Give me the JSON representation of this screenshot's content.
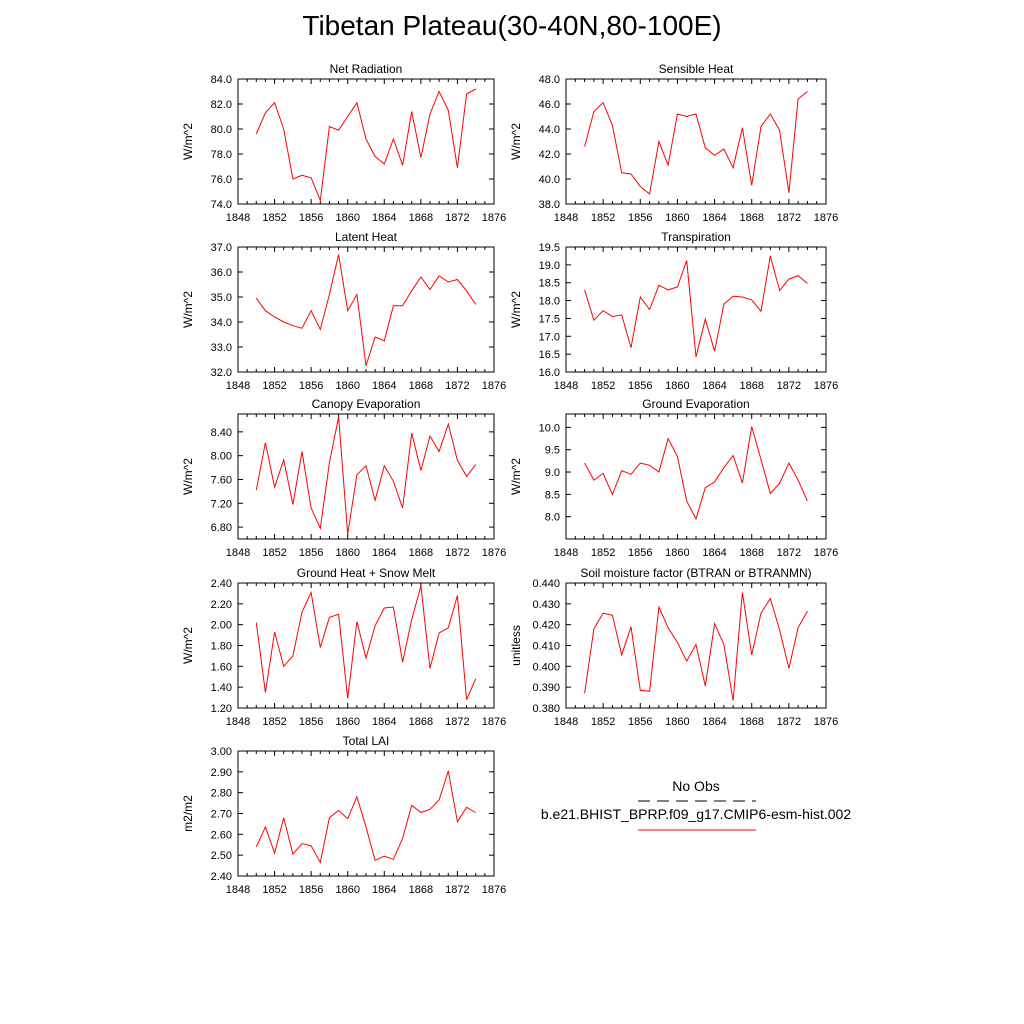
{
  "title": "Tibetan Plateau(30-40N,80-100E)",
  "colors": {
    "model_line": "#ff0000",
    "obs_line": "#000000",
    "axis": "#000000"
  },
  "legend": {
    "obs_label": "No Obs",
    "case_label": "b.e21.BHIST_BPRP.f09_g17.CMIP6-esm-hist.002"
  },
  "chart_data": [
    {
      "type": "line",
      "title": "Net Radiation",
      "ylabel": "W/m^2",
      "xlim": [
        1848,
        1876
      ],
      "ylim": [
        74.0,
        84.0
      ],
      "xticks": [
        "1848",
        "1852",
        "1856",
        "1860",
        "1864",
        "1868",
        "1872",
        "1876"
      ],
      "yticks": [
        "74.0",
        "76.0",
        "78.0",
        "80.0",
        "82.0",
        "84.0"
      ],
      "ytick_values": [
        74,
        76,
        78,
        80,
        82,
        84
      ],
      "grid": false,
      "series": [
        {
          "x": [
            1850,
            1851,
            1852,
            1853,
            1854,
            1855,
            1856,
            1857,
            1858,
            1859,
            1860,
            1861,
            1862,
            1863,
            1864,
            1865,
            1866,
            1867,
            1868,
            1869,
            1870,
            1871,
            1872,
            1873,
            1874
          ],
          "values": [
            79.6,
            81.3,
            82.1,
            80.0,
            76.0,
            76.3,
            76.1,
            74.3,
            80.2,
            79.9,
            81.0,
            82.1,
            79.2,
            77.8,
            77.2,
            79.2,
            77.1,
            81.4,
            77.7,
            81.2,
            83.0,
            81.5,
            76.9,
            82.8,
            83.2
          ]
        }
      ]
    },
    {
      "type": "line",
      "title": "Sensible Heat",
      "ylabel": "W/m^2",
      "xlim": [
        1848,
        1876
      ],
      "ylim": [
        38.0,
        48.0
      ],
      "xticks": [
        "1848",
        "1852",
        "1856",
        "1860",
        "1864",
        "1868",
        "1872",
        "1876"
      ],
      "yticks": [
        "38.0",
        "40.0",
        "42.0",
        "44.0",
        "46.0",
        "48.0"
      ],
      "ytick_values": [
        38,
        40,
        42,
        44,
        46,
        48
      ],
      "grid": false,
      "series": [
        {
          "x": [
            1850,
            1851,
            1852,
            1853,
            1854,
            1855,
            1856,
            1857,
            1858,
            1859,
            1860,
            1861,
            1862,
            1863,
            1864,
            1865,
            1866,
            1867,
            1868,
            1869,
            1870,
            1871,
            1872,
            1873,
            1874
          ],
          "values": [
            42.6,
            45.4,
            46.1,
            44.3,
            40.5,
            40.4,
            39.4,
            38.8,
            43.0,
            41.1,
            45.2,
            45.0,
            45.2,
            42.5,
            41.9,
            42.4,
            40.9,
            44.1,
            39.5,
            44.2,
            45.2,
            43.9,
            38.9,
            46.4,
            47.0
          ]
        }
      ]
    },
    {
      "type": "line",
      "title": "Latent Heat",
      "ylabel": "W/m^2",
      "xlim": [
        1848,
        1876
      ],
      "ylim": [
        32.0,
        37.0
      ],
      "xticks": [
        "1848",
        "1852",
        "1856",
        "1860",
        "1864",
        "1868",
        "1872",
        "1876"
      ],
      "yticks": [
        "32.0",
        "33.0",
        "34.0",
        "35.0",
        "36.0",
        "37.0"
      ],
      "ytick_values": [
        32,
        33,
        34,
        35,
        36,
        37
      ],
      "grid": false,
      "series": [
        {
          "x": [
            1850,
            1851,
            1852,
            1853,
            1854,
            1855,
            1856,
            1857,
            1858,
            1859,
            1860,
            1861,
            1862,
            1863,
            1864,
            1865,
            1866,
            1867,
            1868,
            1869,
            1870,
            1871,
            1872,
            1873,
            1874
          ],
          "values": [
            34.95,
            34.45,
            34.2,
            34.0,
            33.85,
            33.75,
            34.45,
            33.7,
            35.1,
            36.7,
            34.45,
            35.1,
            32.25,
            33.4,
            33.25,
            34.65,
            34.65,
            35.25,
            35.8,
            35.3,
            35.85,
            35.6,
            35.7,
            35.25,
            34.7
          ]
        }
      ]
    },
    {
      "type": "line",
      "title": "Transpiration",
      "ylabel": "W/m^2",
      "xlim": [
        1848,
        1876
      ],
      "ylim": [
        16.0,
        19.5
      ],
      "xticks": [
        "1848",
        "1852",
        "1856",
        "1860",
        "1864",
        "1868",
        "1872",
        "1876"
      ],
      "yticks": [
        "16.0",
        "16.5",
        "17.0",
        "17.5",
        "18.0",
        "18.5",
        "19.0",
        "19.5"
      ],
      "ytick_values": [
        16.0,
        16.5,
        17.0,
        17.5,
        18.0,
        18.5,
        19.0,
        19.5
      ],
      "grid": false,
      "series": [
        {
          "x": [
            1850,
            1851,
            1852,
            1853,
            1854,
            1855,
            1856,
            1857,
            1858,
            1859,
            1860,
            1861,
            1862,
            1863,
            1864,
            1865,
            1866,
            1867,
            1868,
            1869,
            1870,
            1871,
            1872,
            1873,
            1874
          ],
          "values": [
            18.3,
            17.45,
            17.72,
            17.55,
            17.6,
            16.68,
            18.1,
            17.75,
            18.43,
            18.3,
            18.38,
            19.12,
            16.42,
            17.48,
            16.58,
            17.9,
            18.12,
            18.1,
            18.02,
            17.7,
            19.25,
            18.28,
            18.6,
            18.7,
            18.48
          ]
        }
      ]
    },
    {
      "type": "line",
      "title": "Canopy Evaporation",
      "ylabel": "W/m^2",
      "xlim": [
        1848,
        1876
      ],
      "ylim": [
        6.6,
        8.7
      ],
      "xticks": [
        "1848",
        "1852",
        "1856",
        "1860",
        "1864",
        "1868",
        "1872",
        "1876"
      ],
      "yticks": [
        "6.80",
        "7.20",
        "7.60",
        "8.00",
        "8.40"
      ],
      "ytick_values": [
        6.8,
        7.2,
        7.6,
        8.0,
        8.4
      ],
      "grid": false,
      "series": [
        {
          "x": [
            1850,
            1851,
            1852,
            1853,
            1854,
            1855,
            1856,
            1857,
            1858,
            1859,
            1860,
            1861,
            1862,
            1863,
            1864,
            1865,
            1866,
            1867,
            1868,
            1869,
            1870,
            1871,
            1872,
            1873,
            1874
          ],
          "values": [
            7.42,
            8.22,
            7.47,
            7.93,
            7.18,
            8.07,
            7.12,
            6.78,
            7.88,
            8.65,
            6.68,
            7.68,
            7.83,
            7.25,
            7.83,
            7.57,
            7.12,
            8.38,
            7.75,
            8.33,
            8.07,
            8.53,
            7.92,
            7.65,
            7.85
          ]
        }
      ]
    },
    {
      "type": "line",
      "title": "Ground Evaporation",
      "ylabel": "W/m^2",
      "xlim": [
        1848,
        1876
      ],
      "ylim": [
        7.5,
        10.3
      ],
      "xticks": [
        "1848",
        "1852",
        "1856",
        "1860",
        "1864",
        "1868",
        "1872",
        "1876"
      ],
      "yticks": [
        "8.0",
        "8.5",
        "9.0",
        "9.5",
        "10.0"
      ],
      "ytick_values": [
        8.0,
        8.5,
        9.0,
        9.5,
        10.0
      ],
      "grid": false,
      "series": [
        {
          "x": [
            1850,
            1851,
            1852,
            1853,
            1854,
            1855,
            1856,
            1857,
            1858,
            1859,
            1860,
            1861,
            1862,
            1863,
            1864,
            1865,
            1866,
            1867,
            1868,
            1869,
            1870,
            1871,
            1872,
            1873,
            1874
          ],
          "values": [
            9.2,
            8.82,
            8.97,
            8.5,
            9.03,
            8.95,
            9.2,
            9.15,
            9.0,
            9.75,
            9.35,
            8.35,
            7.95,
            8.65,
            8.78,
            9.1,
            9.37,
            8.75,
            10.02,
            9.28,
            8.52,
            8.75,
            9.2,
            8.82,
            8.35
          ]
        }
      ]
    },
    {
      "type": "line",
      "title": "Ground Heat + Snow Melt",
      "ylabel": "W/m^2",
      "xlim": [
        1848,
        1876
      ],
      "ylim": [
        1.2,
        2.4
      ],
      "xticks": [
        "1848",
        "1852",
        "1856",
        "1860",
        "1864",
        "1868",
        "1872",
        "1876"
      ],
      "yticks": [
        "1.20",
        "1.40",
        "1.60",
        "1.80",
        "2.00",
        "2.20",
        "2.40"
      ],
      "ytick_values": [
        1.2,
        1.4,
        1.6,
        1.8,
        2.0,
        2.2,
        2.4
      ],
      "grid": false,
      "series": [
        {
          "x": [
            1850,
            1851,
            1852,
            1853,
            1854,
            1855,
            1856,
            1857,
            1858,
            1859,
            1860,
            1861,
            1862,
            1863,
            1864,
            1865,
            1866,
            1867,
            1868,
            1869,
            1870,
            1871,
            1872,
            1873,
            1874
          ],
          "values": [
            2.02,
            1.35,
            1.93,
            1.6,
            1.7,
            2.12,
            2.31,
            1.78,
            2.07,
            2.1,
            1.29,
            2.03,
            1.68,
            1.99,
            2.16,
            2.17,
            1.64,
            2.05,
            2.37,
            1.58,
            1.92,
            1.97,
            2.28,
            1.28,
            1.48
          ]
        }
      ]
    },
    {
      "type": "line",
      "title": "Soil moisture factor (BTRAN or BTRANMN)",
      "ylabel": "unitless",
      "xlim": [
        1848,
        1876
      ],
      "ylim": [
        0.38,
        0.44
      ],
      "xticks": [
        "1848",
        "1852",
        "1856",
        "1860",
        "1864",
        "1868",
        "1872",
        "1876"
      ],
      "yticks": [
        "0.380",
        "0.390",
        "0.400",
        "0.410",
        "0.420",
        "0.430",
        "0.440"
      ],
      "ytick_values": [
        0.38,
        0.39,
        0.4,
        0.41,
        0.42,
        0.43,
        0.44
      ],
      "grid": false,
      "series": [
        {
          "x": [
            1850,
            1851,
            1852,
            1853,
            1854,
            1855,
            1856,
            1857,
            1858,
            1859,
            1860,
            1861,
            1862,
            1863,
            1864,
            1865,
            1866,
            1867,
            1868,
            1869,
            1870,
            1871,
            1872,
            1873,
            1874
          ],
          "values": [
            0.387,
            0.418,
            0.4255,
            0.4245,
            0.4055,
            0.419,
            0.3885,
            0.388,
            0.4285,
            0.4185,
            0.4115,
            0.4025,
            0.4105,
            0.3905,
            0.4205,
            0.4105,
            0.3835,
            0.4355,
            0.4055,
            0.4255,
            0.4325,
            0.4175,
            0.399,
            0.4185,
            0.4265
          ]
        }
      ]
    },
    {
      "type": "line",
      "title": "Total LAI",
      "ylabel": "m2/m2",
      "xlim": [
        1848,
        1876
      ],
      "ylim": [
        2.4,
        3.0
      ],
      "xticks": [
        "1848",
        "1852",
        "1856",
        "1860",
        "1864",
        "1868",
        "1872",
        "1876"
      ],
      "yticks": [
        "2.40",
        "2.50",
        "2.60",
        "2.70",
        "2.80",
        "2.90",
        "3.00"
      ],
      "ytick_values": [
        2.4,
        2.5,
        2.6,
        2.7,
        2.8,
        2.9,
        3.0
      ],
      "grid": false,
      "series": [
        {
          "x": [
            1850,
            1851,
            1852,
            1853,
            1854,
            1855,
            1856,
            1857,
            1858,
            1859,
            1860,
            1861,
            1862,
            1863,
            1864,
            1865,
            1866,
            1867,
            1868,
            1869,
            1870,
            1871,
            1872,
            1873,
            1874
          ],
          "values": [
            2.54,
            2.635,
            2.51,
            2.68,
            2.505,
            2.555,
            2.545,
            2.465,
            2.68,
            2.715,
            2.675,
            2.78,
            2.635,
            2.475,
            2.495,
            2.48,
            2.58,
            2.74,
            2.705,
            2.72,
            2.765,
            2.905,
            2.66,
            2.73,
            2.705
          ]
        }
      ]
    }
  ]
}
